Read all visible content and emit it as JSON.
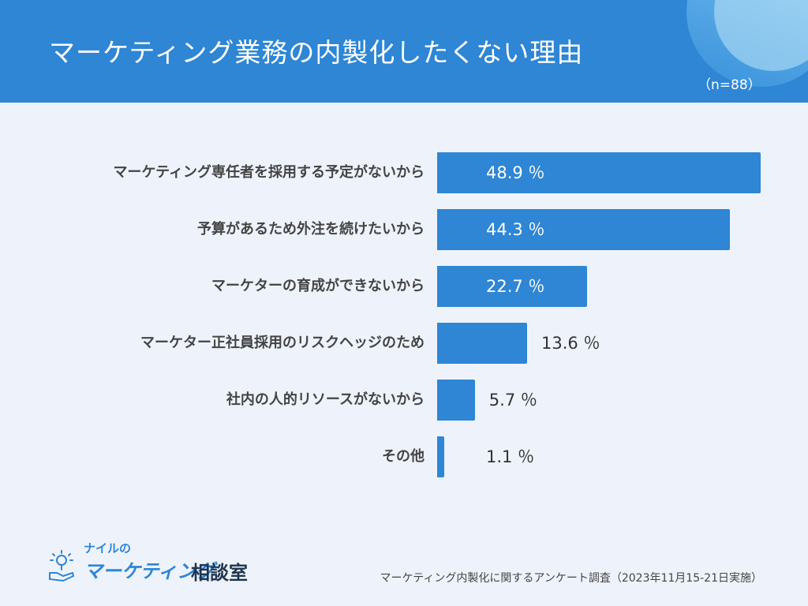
{
  "header": {
    "title": "マーケティング業務の内製化したくない理由",
    "sample_size": "（n=88）"
  },
  "chart_data": {
    "type": "bar",
    "orientation": "horizontal",
    "title": "マーケティング業務の内製化したくない理由",
    "unit": "%",
    "categories": [
      "マーケティング専任者を採用する予定がないから",
      "予算があるため外注を続けたいから",
      "マーケターの育成ができないから",
      "マーケター正社員採用のリスクヘッジのため",
      "社内の人的リソースがないから",
      "その他"
    ],
    "values": [
      48.9,
      44.3,
      22.7,
      13.6,
      5.7,
      1.1
    ],
    "value_labels": [
      "48.9 ％",
      "44.3 ％",
      "22.7 ％",
      "13.6 ％",
      "5.7 ％",
      "1.1 ％"
    ],
    "xlim": [
      0,
      50
    ],
    "xlabel": "",
    "ylabel": "",
    "grid": false,
    "bar_color": "#2e86d4"
  },
  "logo": {
    "small": "ナイルの",
    "main": "マーケティング",
    "suffix": "相談室"
  },
  "footnote": "マーケティング内製化に関するアンケート調査（2023年11月15-21日実施）",
  "colors": {
    "header_bg": "#2e86d4",
    "page_bg": "#eef3fb",
    "bar": "#2e86d4"
  }
}
